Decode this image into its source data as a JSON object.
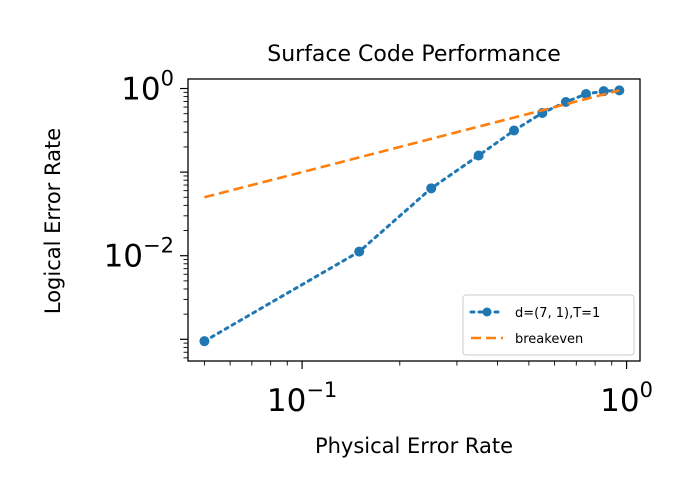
{
  "chart_data": {
    "type": "line",
    "title": "Surface Code Performance",
    "xlabel": "Physical Error Rate",
    "ylabel": "Logical Error Rate",
    "xscale": "log",
    "yscale": "log",
    "xlim": [
      0.0445,
      1.1
    ],
    "ylim": [
      0.00055,
      1.3
    ],
    "x_ticks": [
      {
        "value": 0.1,
        "base": "10",
        "exp": "−1"
      },
      {
        "value": 1.0,
        "base": "10",
        "exp": "0"
      }
    ],
    "y_ticks": [
      {
        "value": 0.01,
        "base": "10",
        "exp": "−2"
      },
      {
        "value": 1.0,
        "base": "10",
        "exp": "0"
      }
    ],
    "grid": false,
    "legend_position": "lower-right",
    "series": [
      {
        "name": "d=(7, 1),T=1",
        "color": "#1f77b4",
        "style": "dotted",
        "marker": "circle",
        "x": [
          0.05,
          0.15,
          0.25,
          0.35,
          0.45,
          0.55,
          0.65,
          0.75,
          0.85,
          0.95
        ],
        "y": [
          0.00095,
          0.0112,
          0.064,
          0.158,
          0.315,
          0.51,
          0.69,
          0.86,
          0.93,
          0.95
        ]
      },
      {
        "name": "breakeven",
        "color": "#ff7f0e",
        "style": "dashed",
        "marker": "none",
        "x": [
          0.05,
          0.95
        ],
        "y": [
          0.05,
          0.95
        ]
      }
    ]
  }
}
